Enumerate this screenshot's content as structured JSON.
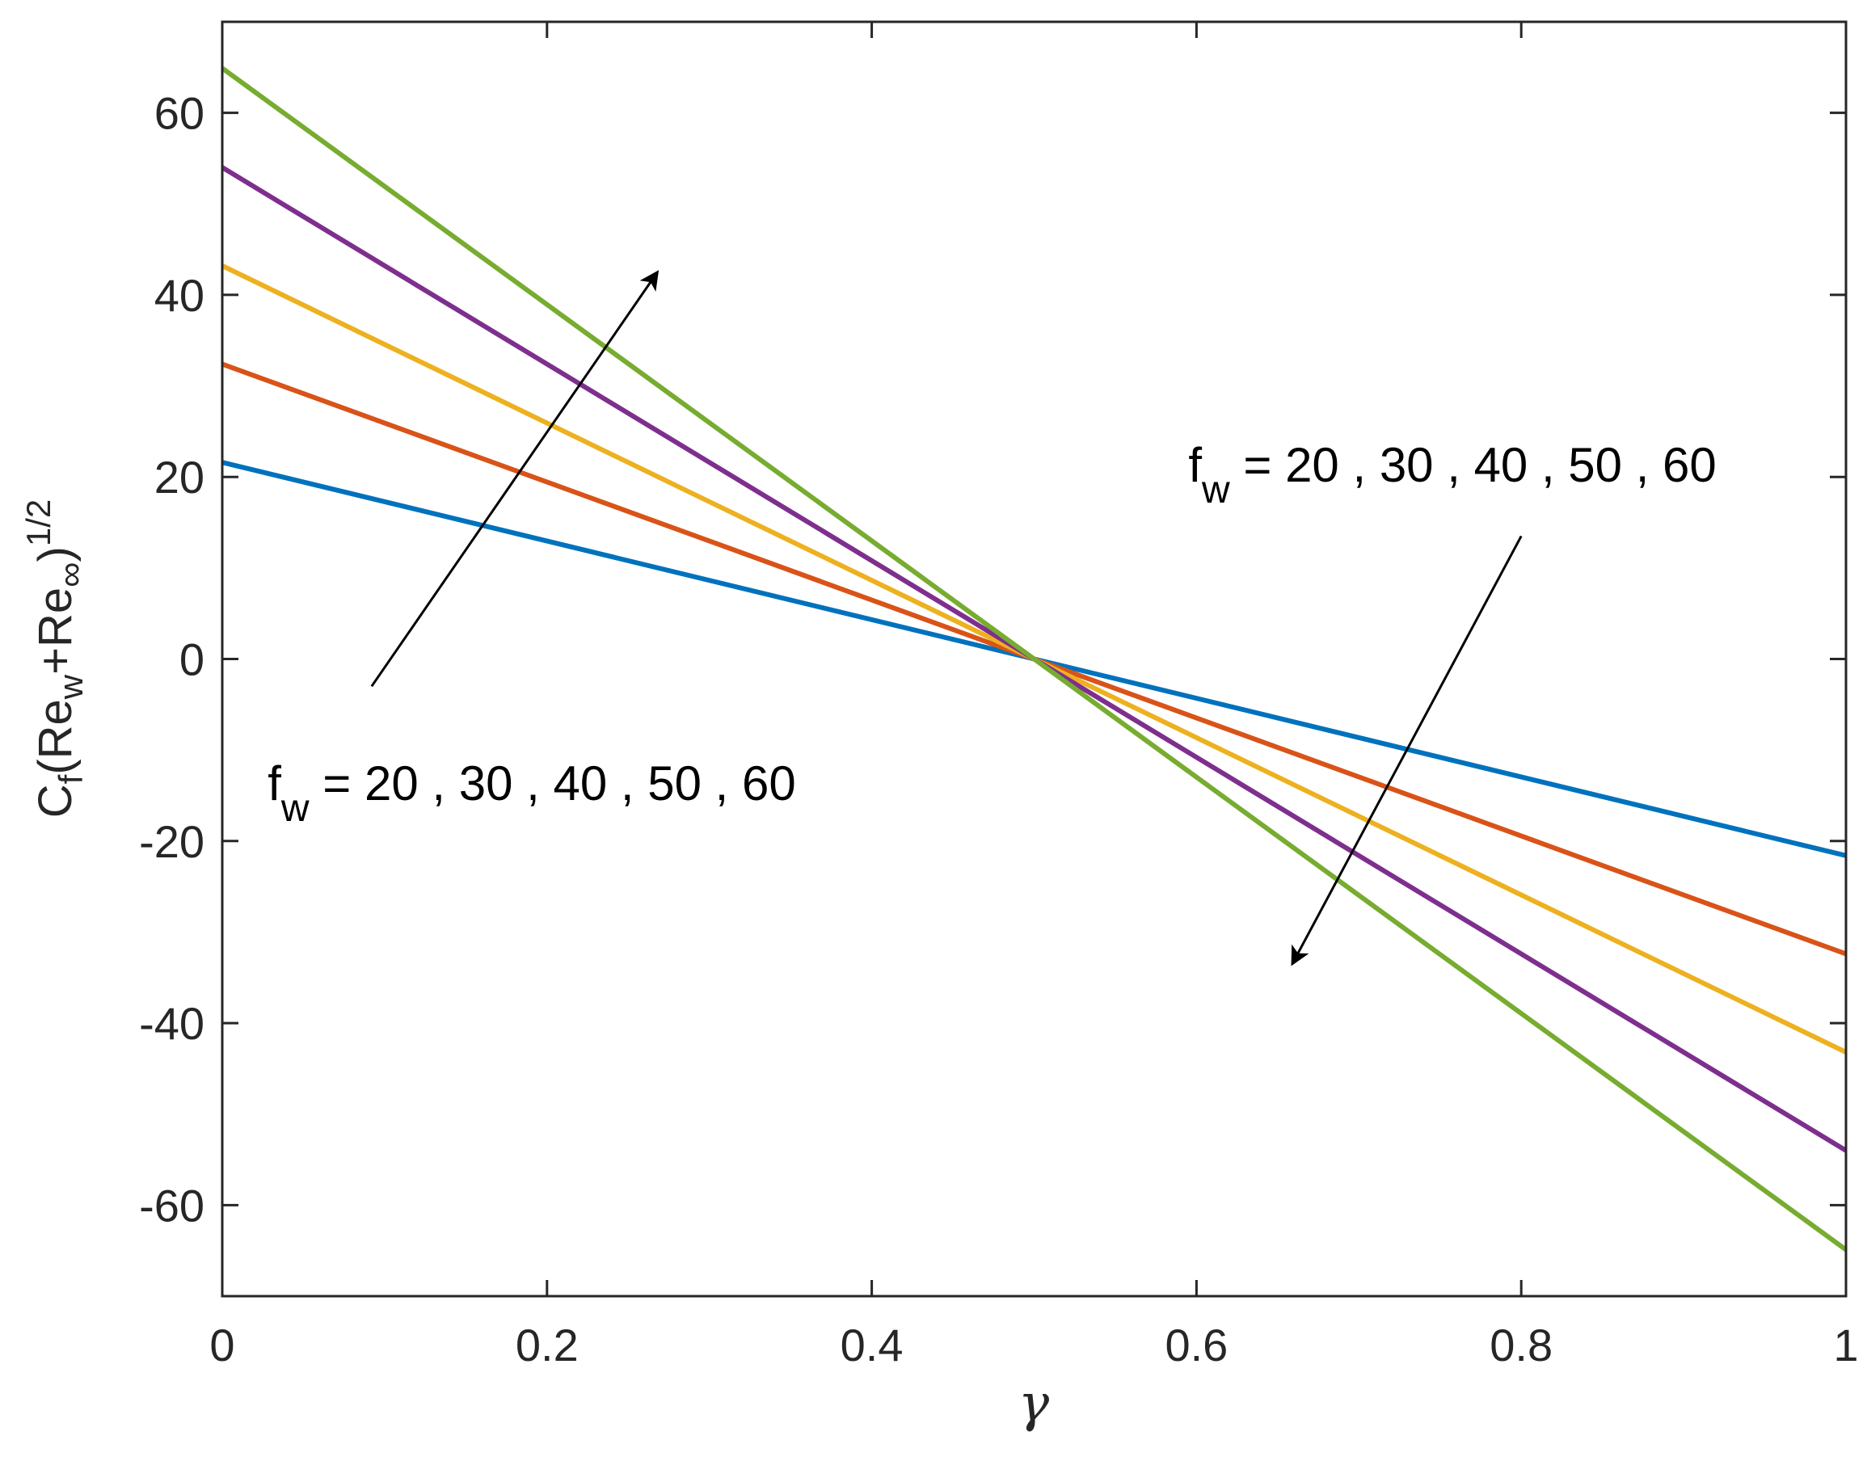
{
  "chart_data": {
    "type": "line",
    "title": "",
    "xlabel": "γ",
    "ylabel_parts": {
      "base": "C",
      "sub_f": "f",
      "open": "(Re",
      "sub_w": "w",
      "plus": "+Re",
      "sub_inf": "∞",
      "close": ")",
      "sup": "1/2"
    },
    "xlim": [
      0,
      1
    ],
    "ylim": [
      -70,
      70
    ],
    "xticks": [
      0,
      0.2,
      0.4,
      0.6,
      0.8,
      1
    ],
    "xtick_labels": [
      "0",
      "0.2",
      "0.4",
      "0.6",
      "0.8",
      "1"
    ],
    "yticks": [
      -60,
      -40,
      -20,
      0,
      20,
      40,
      60
    ],
    "ytick_labels": [
      "-60",
      "-40",
      "-20",
      "0",
      "20",
      "40",
      "60"
    ],
    "grid": false,
    "legend": "none",
    "series": [
      {
        "color": "#0072BD",
        "x": [
          0,
          1
        ],
        "y": [
          21.6,
          -21.6
        ]
      },
      {
        "color": "#D95319",
        "x": [
          0,
          1
        ],
        "y": [
          32.4,
          -32.4
        ]
      },
      {
        "color": "#EDB120",
        "x": [
          0,
          1
        ],
        "y": [
          43.2,
          -43.2
        ]
      },
      {
        "color": "#7E2F8E",
        "x": [
          0,
          1
        ],
        "y": [
          54.0,
          -54.0
        ]
      },
      {
        "color": "#77AC30",
        "x": [
          0,
          1
        ],
        "y": [
          64.9,
          -64.9
        ]
      }
    ],
    "annotations": [
      {
        "name": "annotation-left",
        "text_base": "f",
        "text_sub": "w",
        "text_rest": " = 20 , 30 , 40 , 50 , 60",
        "arrow_from": [
          0.092,
          -3
        ],
        "arrow_to": [
          0.268,
          42.5
        ]
      },
      {
        "name": "annotation-right",
        "text_base": "f",
        "text_sub": "w",
        "text_rest": " = 20 , 30 , 40 , 50 , 60",
        "arrow_from": [
          0.8,
          13.5
        ],
        "arrow_to": [
          0.659,
          -33.5
        ]
      }
    ]
  }
}
